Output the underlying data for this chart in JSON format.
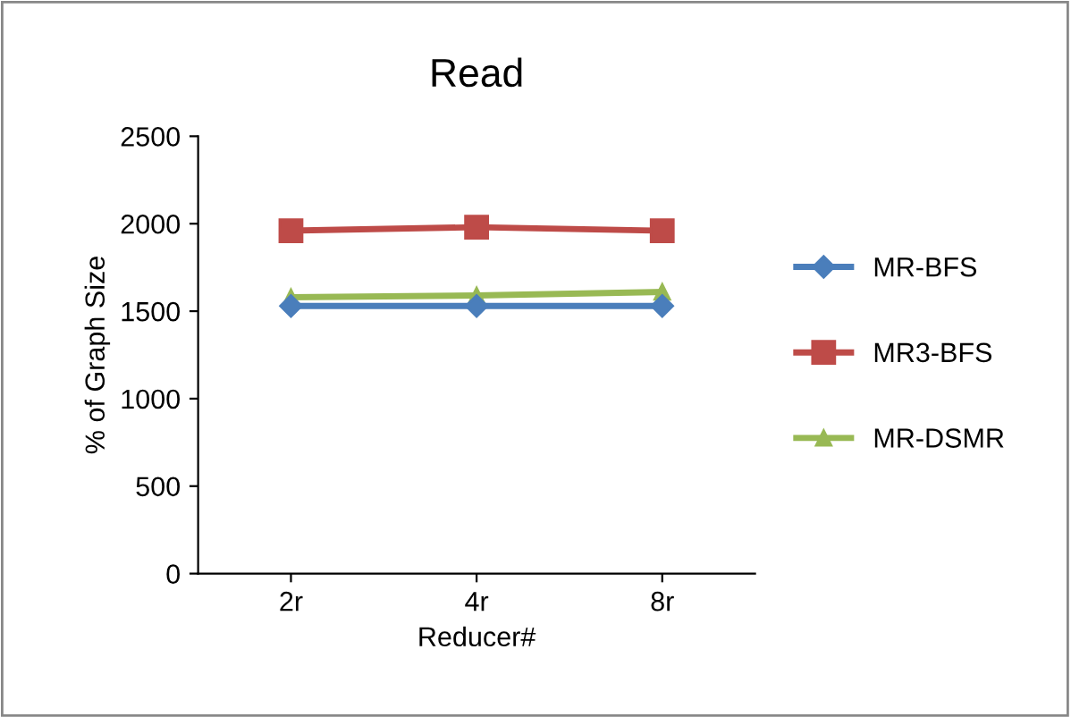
{
  "chart_data": {
    "type": "line",
    "title": "Read",
    "xlabel": "Reducer#",
    "ylabel": "% of Graph Size",
    "categories": [
      "2r",
      "4r",
      "8r"
    ],
    "series": [
      {
        "name": "MR-BFS",
        "color": "#4a7ebb",
        "values": [
          1530,
          1530,
          1530
        ],
        "marker": "diamond"
      },
      {
        "name": "MR3-BFS",
        "color": "#be4b48",
        "values": [
          1960,
          1980,
          1960
        ],
        "marker": "square"
      },
      {
        "name": "MR-DSMR",
        "color": "#98b954",
        "values": [
          1580,
          1590,
          1610
        ],
        "marker": "triangle"
      }
    ],
    "ylim": [
      0,
      2500
    ],
    "yticks": [
      0,
      500,
      1000,
      1500,
      2000,
      2500
    ],
    "grid": false,
    "legend": "right",
    "line_style": "solid"
  }
}
